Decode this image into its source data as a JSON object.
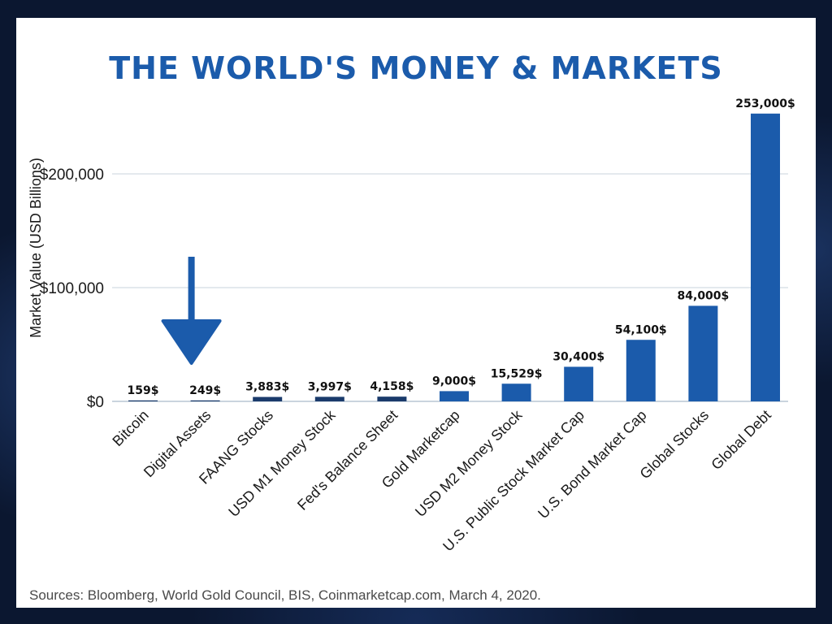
{
  "chart_data": {
    "type": "bar",
    "title": "THE WORLD'S MONEY & MARKETS",
    "ylabel": "Market Value (USD Billions)",
    "xlabel": "",
    "ylim": [
      0,
      260000
    ],
    "yticks": [
      {
        "value": 0,
        "label": "$0"
      },
      {
        "value": 100000,
        "label": "$100,000"
      },
      {
        "value": 200000,
        "label": "$200,000"
      }
    ],
    "grid": true,
    "categories": [
      "Bitcoin",
      "Digital Assets",
      "FAANG Stocks",
      "USD M1 Money Stock",
      "Fed's Balance Sheet",
      "Gold Marketcap",
      "USD M2 Money Stock",
      "U.S. Public Stock Market Cap",
      "U.S. Bond Market Cap",
      "Global Stocks",
      "Global Debt"
    ],
    "values": [
      159,
      249,
      3883,
      3997,
      4158,
      9000,
      15529,
      30400,
      54100,
      84000,
      253000
    ],
    "data_labels": [
      "159$",
      "249$",
      "3,883$",
      "3,997$",
      "4,158$",
      "9,000$",
      "15,529$",
      "30,400$",
      "54,100$",
      "84,000$",
      "253,000$"
    ],
    "bar_colors": [
      "#1a3a6b",
      "#1a3a6b",
      "#1a3a6b",
      "#1a3a6b",
      "#1a3a6b",
      "#1b5bab",
      "#1b5bab",
      "#1b5bab",
      "#1b5bab",
      "#1b5bab",
      "#1b5bab"
    ],
    "annotations": [
      {
        "type": "arrow",
        "target": "Digital Assets",
        "direction": "down"
      }
    ],
    "source": "Sources: Bloomberg, World Gold Council, BIS, Coinmarketcap.com, March 4, 2020."
  },
  "colors": {
    "title": "#1b5bab",
    "arrow": "#1b5bab",
    "gridline": "#c9d3de",
    "background_frame": "#0b1730"
  }
}
